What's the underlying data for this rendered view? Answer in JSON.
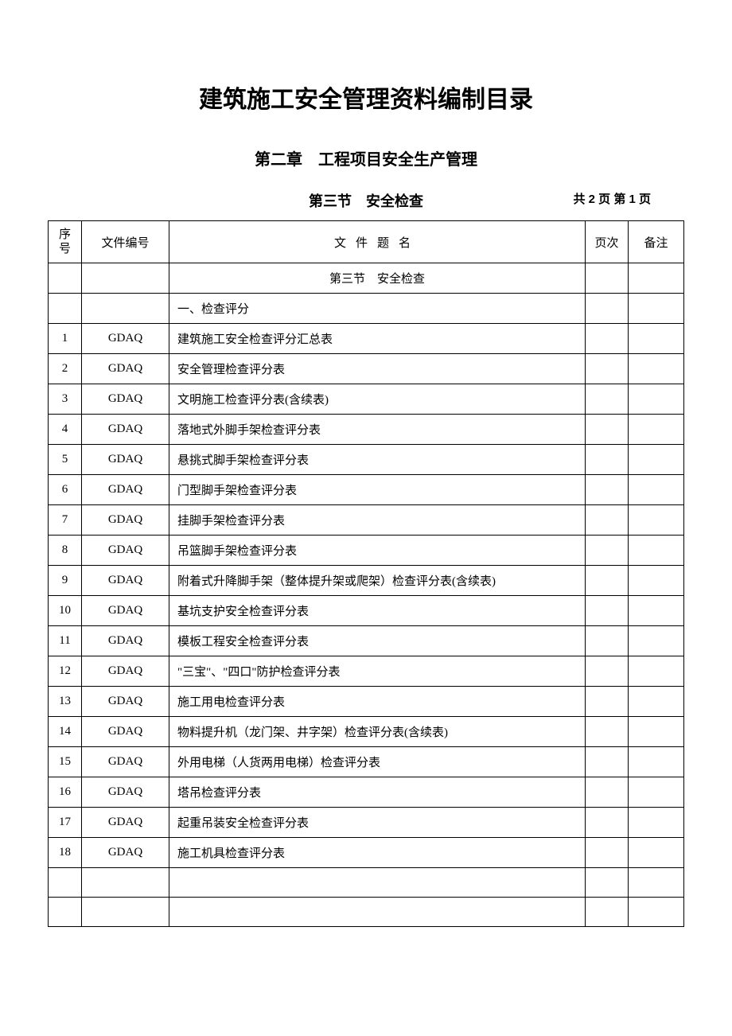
{
  "title": "建筑施工安全管理资料编制目录",
  "chapter": "第二章　工程项目安全生产管理",
  "section": "第三节　安全检查",
  "page_info": "共 2 页 第 1 页",
  "headers": {
    "seq_line1": "序",
    "seq_line2": "号",
    "docno": "文件编号",
    "title": "文件题名",
    "page": "页次",
    "remark": "备注"
  },
  "section_row": "第三节　安全检查",
  "subsection_row": "一、检查评分",
  "rows": [
    {
      "seq": "1",
      "docno": "GDAQ",
      "title": "建筑施工安全检查评分汇总表",
      "page": "",
      "remark": ""
    },
    {
      "seq": "2",
      "docno": "GDAQ",
      "title": "安全管理检查评分表",
      "page": "",
      "remark": ""
    },
    {
      "seq": "3",
      "docno": "GDAQ",
      "title": "文明施工检查评分表(含续表)",
      "page": "",
      "remark": ""
    },
    {
      "seq": "4",
      "docno": "GDAQ",
      "title": "落地式外脚手架检查评分表",
      "page": "",
      "remark": ""
    },
    {
      "seq": "5",
      "docno": "GDAQ",
      "title": "悬挑式脚手架检查评分表",
      "page": "",
      "remark": ""
    },
    {
      "seq": "6",
      "docno": "GDAQ",
      "title": "门型脚手架检查评分表",
      "page": "",
      "remark": ""
    },
    {
      "seq": "7",
      "docno": "GDAQ",
      "title": "挂脚手架检查评分表",
      "page": "",
      "remark": ""
    },
    {
      "seq": "8",
      "docno": "GDAQ",
      "title": "吊篮脚手架检查评分表",
      "page": "",
      "remark": ""
    },
    {
      "seq": "9",
      "docno": "GDAQ",
      "title": "附着式升降脚手架（整体提升架或爬架）检查评分表(含续表)",
      "page": "",
      "remark": ""
    },
    {
      "seq": "10",
      "docno": "GDAQ",
      "title": "基坑支护安全检查评分表",
      "page": "",
      "remark": ""
    },
    {
      "seq": "11",
      "docno": "GDAQ",
      "title": "模板工程安全检查评分表",
      "page": "",
      "remark": ""
    },
    {
      "seq": "12",
      "docno": "GDAQ",
      "title": "\"三宝\"、\"四口\"防护检查评分表",
      "page": "",
      "remark": ""
    },
    {
      "seq": "13",
      "docno": "GDAQ",
      "title": "施工用电检查评分表",
      "page": "",
      "remark": ""
    },
    {
      "seq": "14",
      "docno": "GDAQ",
      "title": "物料提升机（龙门架、井字架）检查评分表(含续表)",
      "page": "",
      "remark": ""
    },
    {
      "seq": "15",
      "docno": "GDAQ",
      "title": "外用电梯（人货两用电梯）检查评分表",
      "page": "",
      "remark": ""
    },
    {
      "seq": "16",
      "docno": "GDAQ",
      "title": "塔吊检查评分表",
      "page": "",
      "remark": ""
    },
    {
      "seq": "17",
      "docno": "GDAQ",
      "title": "起重吊装安全检查评分表",
      "page": "",
      "remark": ""
    },
    {
      "seq": "18",
      "docno": "GDAQ",
      "title": "施工机具检查评分表",
      "page": "",
      "remark": ""
    },
    {
      "seq": "",
      "docno": "",
      "title": "",
      "page": "",
      "remark": ""
    },
    {
      "seq": "",
      "docno": "",
      "title": "",
      "page": "",
      "remark": ""
    }
  ]
}
